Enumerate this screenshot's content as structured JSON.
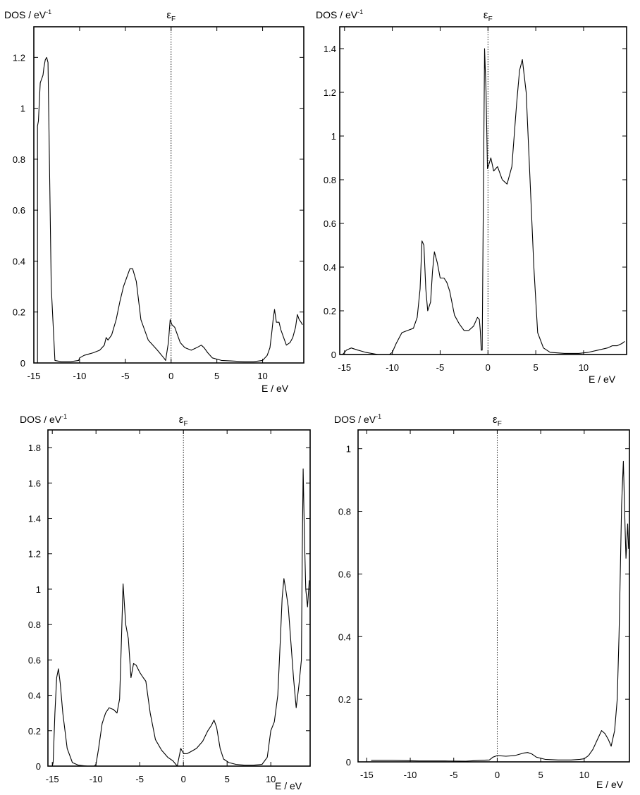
{
  "colors": {
    "line": "#000000",
    "background": "#ffffff"
  },
  "chart_data": [
    {
      "type": "line",
      "ylabel": "DOS / eV",
      "ylabel_sup": "-1",
      "xlabel": "E / eV",
      "fermi_label": "ε",
      "fermi_sub": "F",
      "fermi_x": 0,
      "grid": false,
      "xlim": [
        -15,
        14.5
      ],
      "ylim": [
        0,
        1.32
      ],
      "xticks": [
        -15,
        -10,
        -5,
        0,
        5,
        10
      ],
      "yticks": [
        0,
        0.2,
        0.4,
        0.6,
        0.8,
        1,
        1.2
      ],
      "ytick_labels": [
        "0",
        "0.2",
        "0.4",
        "0.6",
        "0.8",
        "1",
        "1.2"
      ],
      "series": [
        {
          "x": [
            -14.6,
            -14.6,
            -14.5,
            -14.3,
            -14.1,
            -14.0,
            -13.9,
            -13.75,
            -13.6,
            -13.45,
            -13.3,
            -13.1,
            -12.7,
            -12.0,
            -11.0,
            -10.1,
            -10.0,
            -9.5,
            -8.5,
            -7.8,
            -7.3,
            -7.1,
            -6.9,
            -6.5,
            -6.0,
            -5.6,
            -5.2,
            -4.8,
            -4.5,
            -4.2,
            -3.8,
            -3.3,
            -2.5,
            -1.5,
            -0.8,
            -0.6,
            -0.3,
            -0.1,
            0.1,
            0.4,
            1.0,
            1.5,
            2.2,
            2.8,
            3.3,
            3.6,
            4.0,
            4.5,
            5.5,
            6.5,
            8.0,
            9.0,
            10.0,
            10.5,
            10.8,
            11.0,
            11.15,
            11.3,
            11.5,
            11.8,
            12.0,
            12.3,
            12.6,
            13.0,
            13.3,
            13.6,
            13.8,
            14.0,
            14.2,
            14.35
          ],
          "y": [
            0,
            0.93,
            0.95,
            1.1,
            1.12,
            1.13,
            1.16,
            1.19,
            1.2,
            1.18,
            0.8,
            0.3,
            0.01,
            0.005,
            0.005,
            0.01,
            0.02,
            0.03,
            0.04,
            0.05,
            0.07,
            0.1,
            0.09,
            0.11,
            0.17,
            0.24,
            0.3,
            0.34,
            0.37,
            0.37,
            0.32,
            0.17,
            0.09,
            0.05,
            0.02,
            0.01,
            0.08,
            0.17,
            0.15,
            0.14,
            0.08,
            0.06,
            0.05,
            0.06,
            0.07,
            0.06,
            0.04,
            0.02,
            0.01,
            0.008,
            0.005,
            0.005,
            0.01,
            0.03,
            0.06,
            0.12,
            0.17,
            0.21,
            0.16,
            0.16,
            0.13,
            0.1,
            0.07,
            0.08,
            0.1,
            0.14,
            0.19,
            0.17,
            0.16,
            0.15
          ]
        }
      ]
    },
    {
      "type": "line",
      "ylabel": "DOS / eV",
      "ylabel_sup": "-1",
      "xlabel": "E / eV",
      "fermi_label": "ε",
      "fermi_sub": "F",
      "fermi_x": 0,
      "grid": false,
      "xlim": [
        -15.5,
        14.5
      ],
      "ylim": [
        0,
        1.5
      ],
      "xticks": [
        -15,
        -10,
        -5,
        0,
        5,
        10
      ],
      "yticks": [
        0,
        0.2,
        0.4,
        0.6,
        0.8,
        1,
        1.2,
        1.4
      ],
      "ytick_labels": [
        "0",
        "0.2",
        "0.4",
        "0.6",
        "0.8",
        "1",
        "1.2",
        "1.4"
      ],
      "series": [
        {
          "x": [
            -15.2,
            -14.8,
            -14.3,
            -13.6,
            -12.8,
            -11.5,
            -10.3,
            -10.0,
            -9.6,
            -9.0,
            -8.4,
            -7.8,
            -7.4,
            -7.1,
            -6.9,
            -6.7,
            -6.5,
            -6.3,
            -6.0,
            -5.8,
            -5.6,
            -5.3,
            -5.0,
            -4.6,
            -4.3,
            -4.0,
            -3.5,
            -3.0,
            -2.5,
            -2.0,
            -1.5,
            -1.1,
            -0.9,
            -0.8,
            -0.7,
            -0.6,
            -0.5,
            -0.35,
            -0.2,
            -0.05,
            0.1,
            0.3,
            0.6,
            1.0,
            1.5,
            2.0,
            2.5,
            3.0,
            3.3,
            3.6,
            4.0,
            4.4,
            4.8,
            5.2,
            5.8,
            6.5,
            8.0,
            9.5,
            10.5,
            11.5,
            12.5,
            13.0,
            13.5,
            14.0,
            14.3
          ],
          "y": [
            0,
            0.02,
            0.03,
            0.02,
            0.01,
            0,
            0,
            0.01,
            0.05,
            0.1,
            0.11,
            0.12,
            0.17,
            0.3,
            0.52,
            0.5,
            0.3,
            0.2,
            0.24,
            0.38,
            0.47,
            0.42,
            0.35,
            0.35,
            0.33,
            0.29,
            0.18,
            0.14,
            0.11,
            0.11,
            0.13,
            0.17,
            0.16,
            0.11,
            0.02,
            0.02,
            0.6,
            1.4,
            1.2,
            0.85,
            0.87,
            0.9,
            0.84,
            0.86,
            0.8,
            0.78,
            0.86,
            1.15,
            1.3,
            1.35,
            1.2,
            0.8,
            0.4,
            0.1,
            0.03,
            0.01,
            0.005,
            0.005,
            0.01,
            0.02,
            0.03,
            0.04,
            0.04,
            0.05,
            0.06
          ]
        }
      ]
    },
    {
      "type": "line",
      "ylabel": "DOS / eV",
      "ylabel_sup": "-1",
      "xlabel": "E / eV",
      "fermi_label": "ε",
      "fermi_sub": "F",
      "fermi_x": 0,
      "grid": false,
      "xlim": [
        -15.5,
        14.5
      ],
      "ylim": [
        0,
        1.9
      ],
      "xticks": [
        -15,
        -10,
        -5,
        0,
        5,
        10
      ],
      "yticks": [
        0,
        0.2,
        0.4,
        0.6,
        0.8,
        1,
        1.2,
        1.4,
        1.6,
        1.8
      ],
      "ytick_labels": [
        "0",
        "0.2",
        "0.4",
        "0.6",
        "0.8",
        "1",
        "1.2",
        "1.4",
        "1.6",
        "1.8"
      ],
      "series": [
        {
          "x": [
            -15.0,
            -14.9,
            -14.7,
            -14.5,
            -14.3,
            -14.1,
            -13.8,
            -13.3,
            -12.7,
            -12.0,
            -11.0,
            -10.2,
            -10.0,
            -9.7,
            -9.3,
            -8.9,
            -8.5,
            -8.0,
            -7.6,
            -7.3,
            -7.1,
            -6.9,
            -6.6,
            -6.3,
            -6.0,
            -5.7,
            -5.4,
            -5.0,
            -4.6,
            -4.3,
            -3.8,
            -3.2,
            -2.5,
            -1.8,
            -1.2,
            -0.7,
            -0.5,
            -0.3,
            -0.1,
            0.1,
            0.4,
            0.8,
            1.5,
            2.2,
            2.8,
            3.2,
            3.5,
            3.8,
            4.2,
            4.6,
            5.2,
            6.0,
            7.0,
            8.0,
            9.0,
            9.6,
            10.0,
            10.4,
            10.8,
            11.1,
            11.3,
            11.5,
            11.7,
            12.0,
            12.3,
            12.6,
            12.9,
            13.2,
            13.5,
            13.6,
            13.7,
            13.85,
            14.0,
            14.2,
            14.4
          ],
          "y": [
            0,
            0.02,
            0.3,
            0.5,
            0.55,
            0.47,
            0.3,
            0.1,
            0.02,
            0.005,
            0,
            0,
            0.01,
            0.1,
            0.24,
            0.3,
            0.33,
            0.32,
            0.3,
            0.38,
            0.7,
            1.03,
            0.8,
            0.72,
            0.5,
            0.58,
            0.57,
            0.53,
            0.5,
            0.48,
            0.3,
            0.15,
            0.09,
            0.05,
            0.03,
            0,
            0.05,
            0.1,
            0.08,
            0.07,
            0.07,
            0.08,
            0.1,
            0.14,
            0.2,
            0.23,
            0.26,
            0.22,
            0.1,
            0.04,
            0.02,
            0.01,
            0.005,
            0.005,
            0.01,
            0.05,
            0.2,
            0.25,
            0.4,
            0.72,
            0.95,
            1.06,
            1.0,
            0.9,
            0.7,
            0.5,
            0.33,
            0.45,
            0.6,
            1.2,
            1.68,
            1.3,
            1.0,
            0.9,
            1.05
          ]
        }
      ]
    },
    {
      "type": "line",
      "ylabel": "DOS / eV",
      "ylabel_sup": "-1",
      "xlabel": "E / eV",
      "fermi_label": "ε",
      "fermi_sub": "F",
      "fermi_x": 0,
      "grid": false,
      "xlim": [
        -16,
        15.2
      ],
      "ylim": [
        0,
        1.06
      ],
      "xticks": [
        -15,
        -10,
        -5,
        0,
        5,
        10
      ],
      "yticks": [
        0,
        0.2,
        0.4,
        0.6,
        0.8,
        1
      ],
      "ytick_labels": [
        "0",
        "0.2",
        "0.4",
        "0.6",
        "0.8",
        "1"
      ],
      "series": [
        {
          "x": [
            -14.5,
            -12.0,
            -9.0,
            -6.0,
            -3.6,
            -2.0,
            -0.9,
            -0.5,
            0.0,
            1.0,
            2.0,
            3.0,
            3.5,
            4.0,
            4.5,
            5.5,
            7.0,
            8.5,
            9.5,
            10.0,
            10.5,
            11.0,
            11.5,
            12.0,
            12.4,
            12.8,
            13.1,
            13.5,
            13.8,
            14.0,
            14.15,
            14.3,
            14.5,
            14.7,
            14.8,
            14.9,
            15.0,
            15.1
          ],
          "y": [
            0.005,
            0.005,
            0.003,
            0.003,
            0.002,
            0.005,
            0.006,
            0.015,
            0.02,
            0.018,
            0.02,
            0.028,
            0.03,
            0.025,
            0.015,
            0.008,
            0.006,
            0.006,
            0.008,
            0.01,
            0.02,
            0.04,
            0.07,
            0.1,
            0.09,
            0.07,
            0.05,
            0.1,
            0.2,
            0.4,
            0.6,
            0.82,
            0.96,
            0.75,
            0.65,
            0.7,
            0.76,
            0.68
          ]
        }
      ]
    }
  ]
}
